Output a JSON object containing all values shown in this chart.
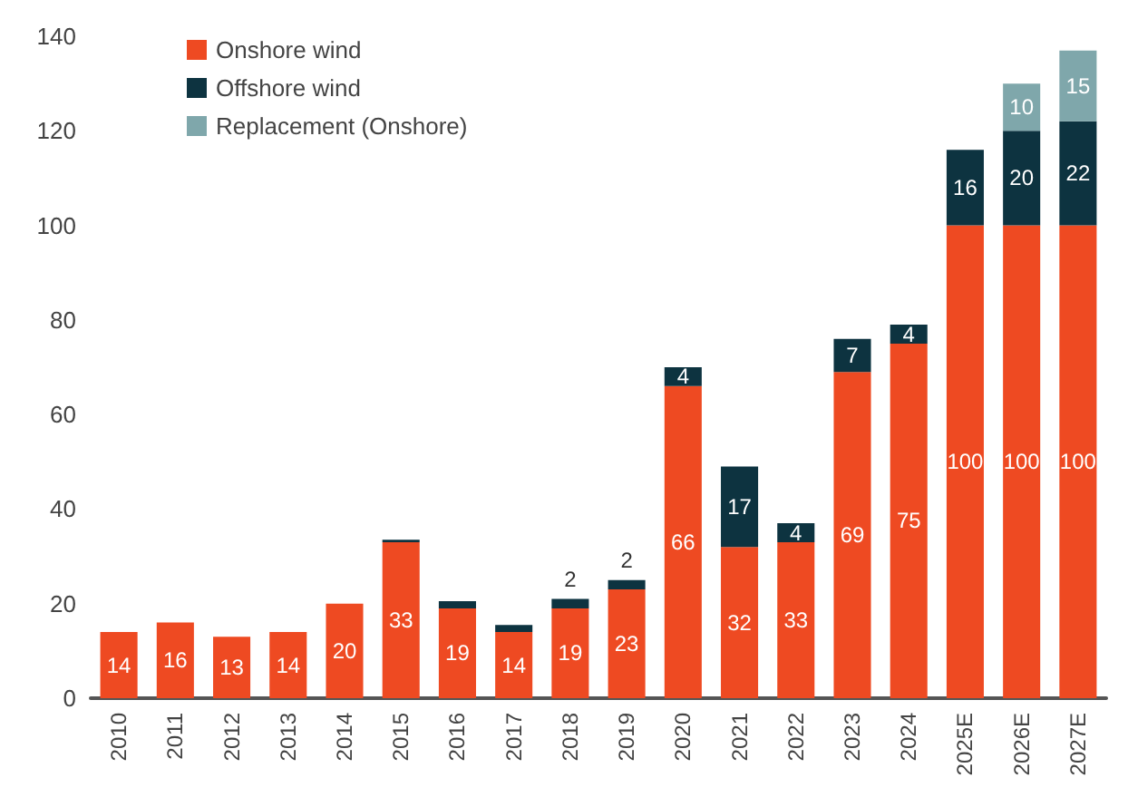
{
  "chart_data": {
    "type": "bar",
    "stacked": true,
    "categories": [
      "2010",
      "2011",
      "2012",
      "2013",
      "2014",
      "2015",
      "2016",
      "2017",
      "2018",
      "2019",
      "2020",
      "2021",
      "2022",
      "2023",
      "2024",
      "2025E",
      "2026E",
      "2027E"
    ],
    "series": [
      {
        "name": "Onshore wind",
        "color": "#ee4a22",
        "values": [
          14,
          16,
          13,
          14,
          20,
          33,
          19,
          14,
          19,
          23,
          66,
          32,
          33,
          69,
          75,
          100,
          100,
          100
        ],
        "value_labels": [
          "14",
          "16",
          "13",
          "14",
          "20",
          "33",
          "19",
          "14",
          "19",
          "23",
          "66",
          "32",
          "33",
          "69",
          "75",
          "100",
          "100",
          "100"
        ]
      },
      {
        "name": "Offshore wind",
        "color": "#0d3340",
        "values": [
          0,
          0,
          0,
          0,
          0,
          0.5,
          1.5,
          1.5,
          2,
          2,
          4,
          17,
          4,
          7,
          4,
          16,
          20,
          22
        ],
        "value_labels": [
          null,
          null,
          null,
          null,
          null,
          null,
          null,
          null,
          "2",
          "2",
          "4",
          "17",
          "4",
          "7",
          "4",
          "16",
          "20",
          "22"
        ]
      },
      {
        "name": "Replacement (Onshore)",
        "color": "#7fa7ab",
        "values": [
          0,
          0,
          0,
          0,
          0,
          0,
          0,
          0,
          0,
          0,
          0,
          0,
          0,
          0,
          0,
          0,
          10,
          15
        ],
        "value_labels": [
          null,
          null,
          null,
          null,
          null,
          null,
          null,
          null,
          null,
          null,
          null,
          null,
          null,
          null,
          null,
          null,
          "10",
          "15"
        ]
      }
    ],
    "ylim": [
      0,
      140
    ],
    "yticks": [
      0,
      20,
      40,
      60,
      80,
      100,
      120,
      140
    ],
    "grid": false,
    "legend": "top left"
  }
}
